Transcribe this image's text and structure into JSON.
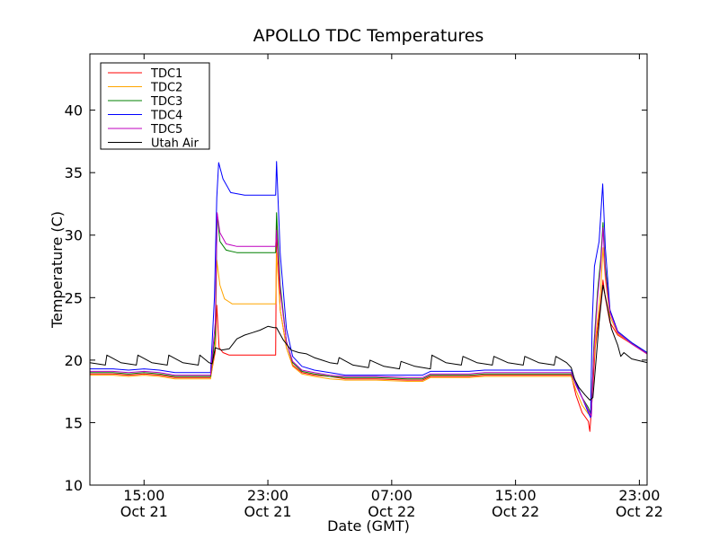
{
  "chart_data": {
    "type": "line",
    "title": "APOLLO TDC Temperatures",
    "xlabel": "Date (GMT)",
    "ylabel": "Temperature (C)",
    "ylim": [
      10,
      44.5
    ],
    "xlim_hours": [
      11.5,
      47.5
    ],
    "grid": false,
    "legend_position": "top-left",
    "yticks": [
      10,
      15,
      20,
      25,
      30,
      35,
      40
    ],
    "xticks": [
      {
        "h": 15,
        "line1": "15:00",
        "line2": "Oct 21"
      },
      {
        "h": 23,
        "line1": "23:00",
        "line2": "Oct 21"
      },
      {
        "h": 31,
        "line1": "07:00",
        "line2": "Oct 22"
      },
      {
        "h": 39,
        "line1": "15:00",
        "line2": "Oct 22"
      },
      {
        "h": 47,
        "line1": "23:00",
        "line2": "Oct 22"
      }
    ],
    "series": [
      {
        "name": "TDC1",
        "color": "#ff0000",
        "points": [
          [
            11.5,
            18.9
          ],
          [
            13,
            18.9
          ],
          [
            14,
            18.8
          ],
          [
            15,
            18.9
          ],
          [
            16,
            18.8
          ],
          [
            17,
            18.6
          ],
          [
            19.3,
            18.6
          ],
          [
            19.6,
            20.7
          ],
          [
            19.7,
            24.4
          ],
          [
            19.85,
            21.0
          ],
          [
            20.1,
            20.6
          ],
          [
            20.5,
            20.4
          ],
          [
            21.5,
            20.4
          ],
          [
            22.5,
            20.4
          ],
          [
            23.5,
            20.4
          ],
          [
            23.56,
            30.8
          ],
          [
            23.8,
            24.0
          ],
          [
            24.2,
            21.0
          ],
          [
            24.6,
            19.6
          ],
          [
            25.2,
            19.0
          ],
          [
            26,
            18.8
          ],
          [
            27,
            18.7
          ],
          [
            28,
            18.5
          ],
          [
            30,
            18.5
          ],
          [
            32,
            18.4
          ],
          [
            33,
            18.4
          ],
          [
            33.5,
            18.7
          ],
          [
            35,
            18.7
          ],
          [
            36,
            18.7
          ],
          [
            37,
            18.8
          ],
          [
            40,
            18.8
          ],
          [
            42,
            18.8
          ],
          [
            42.6,
            18.8
          ],
          [
            42.9,
            17.2
          ],
          [
            43.3,
            15.8
          ],
          [
            43.7,
            15.1
          ],
          [
            43.8,
            14.3
          ],
          [
            43.9,
            16.0
          ],
          [
            44.15,
            21.0
          ],
          [
            44.5,
            24.5
          ],
          [
            44.65,
            26.4
          ],
          [
            44.8,
            25.0
          ],
          [
            45.1,
            23.0
          ],
          [
            45.6,
            22.0
          ],
          [
            46.5,
            21.3
          ],
          [
            47.5,
            20.5
          ]
        ]
      },
      {
        "name": "TDC2",
        "color": "#ffa500",
        "points": [
          [
            11.5,
            18.8
          ],
          [
            13,
            18.8
          ],
          [
            14,
            18.7
          ],
          [
            15,
            18.8
          ],
          [
            16,
            18.7
          ],
          [
            17,
            18.5
          ],
          [
            19.3,
            18.5
          ],
          [
            19.6,
            21.0
          ],
          [
            19.7,
            28.0
          ],
          [
            19.9,
            26.0
          ],
          [
            20.2,
            24.9
          ],
          [
            20.7,
            24.5
          ],
          [
            21.5,
            24.5
          ],
          [
            22.5,
            24.5
          ],
          [
            23.5,
            24.5
          ],
          [
            23.56,
            28.6
          ],
          [
            23.8,
            24.0
          ],
          [
            24.2,
            21.0
          ],
          [
            24.6,
            19.5
          ],
          [
            25.2,
            18.9
          ],
          [
            26,
            18.7
          ],
          [
            27,
            18.5
          ],
          [
            28,
            18.4
          ],
          [
            30,
            18.4
          ],
          [
            32,
            18.3
          ],
          [
            33,
            18.3
          ],
          [
            33.5,
            18.6
          ],
          [
            35,
            18.6
          ],
          [
            36,
            18.6
          ],
          [
            37,
            18.7
          ],
          [
            40,
            18.7
          ],
          [
            42,
            18.7
          ],
          [
            42.6,
            18.7
          ],
          [
            42.9,
            17.6
          ],
          [
            43.3,
            16.4
          ],
          [
            43.7,
            15.7
          ],
          [
            43.85,
            15.6
          ],
          [
            44,
            19.0
          ],
          [
            44.2,
            22.0
          ],
          [
            44.5,
            25.5
          ],
          [
            44.65,
            29.0
          ],
          [
            44.8,
            26.5
          ],
          [
            45.1,
            23.5
          ],
          [
            45.6,
            22.1
          ],
          [
            46.5,
            21.3
          ],
          [
            47.5,
            20.5
          ]
        ]
      },
      {
        "name": "TDC3",
        "color": "#008000",
        "points": [
          [
            11.5,
            19.0
          ],
          [
            13,
            19.0
          ],
          [
            14,
            18.9
          ],
          [
            15,
            19.0
          ],
          [
            16,
            18.9
          ],
          [
            17,
            18.7
          ],
          [
            19.3,
            18.7
          ],
          [
            19.6,
            22.0
          ],
          [
            19.72,
            31.7
          ],
          [
            19.9,
            29.5
          ],
          [
            20.3,
            28.8
          ],
          [
            21,
            28.6
          ],
          [
            22,
            28.6
          ],
          [
            23,
            28.6
          ],
          [
            23.5,
            28.6
          ],
          [
            23.56,
            31.8
          ],
          [
            23.8,
            26.0
          ],
          [
            24.2,
            21.5
          ],
          [
            24.6,
            19.8
          ],
          [
            25.2,
            19.1
          ],
          [
            26,
            18.9
          ],
          [
            27,
            18.7
          ],
          [
            28,
            18.6
          ],
          [
            30,
            18.6
          ],
          [
            32,
            18.5
          ],
          [
            33,
            18.5
          ],
          [
            33.5,
            18.8
          ],
          [
            35,
            18.8
          ],
          [
            36,
            18.8
          ],
          [
            37,
            18.9
          ],
          [
            40,
            18.9
          ],
          [
            42,
            18.9
          ],
          [
            42.6,
            18.9
          ],
          [
            42.9,
            18.0
          ],
          [
            43.3,
            17.0
          ],
          [
            43.7,
            16.2
          ],
          [
            43.9,
            15.6
          ],
          [
            44.05,
            21.0
          ],
          [
            44.3,
            25.5
          ],
          [
            44.5,
            28.0
          ],
          [
            44.65,
            31.0
          ],
          [
            44.8,
            27.5
          ],
          [
            45.1,
            24.0
          ],
          [
            45.6,
            22.3
          ],
          [
            46.5,
            21.4
          ],
          [
            47.5,
            20.6
          ]
        ]
      },
      {
        "name": "TDC4",
        "color": "#0000ff",
        "points": [
          [
            11.5,
            19.3
          ],
          [
            13,
            19.3
          ],
          [
            14,
            19.2
          ],
          [
            15,
            19.3
          ],
          [
            16,
            19.2
          ],
          [
            17,
            19.0
          ],
          [
            19.3,
            19.0
          ],
          [
            19.55,
            25.0
          ],
          [
            19.7,
            33.0
          ],
          [
            19.82,
            35.8
          ],
          [
            20.1,
            34.5
          ],
          [
            20.6,
            33.4
          ],
          [
            21.5,
            33.2
          ],
          [
            22.5,
            33.2
          ],
          [
            23.5,
            33.2
          ],
          [
            23.56,
            35.9
          ],
          [
            23.8,
            28.5
          ],
          [
            24.2,
            22.5
          ],
          [
            24.6,
            20.3
          ],
          [
            25.2,
            19.5
          ],
          [
            26,
            19.2
          ],
          [
            27,
            19.0
          ],
          [
            28,
            18.8
          ],
          [
            30,
            18.8
          ],
          [
            32,
            18.8
          ],
          [
            33,
            18.8
          ],
          [
            33.5,
            19.1
          ],
          [
            35,
            19.1
          ],
          [
            36,
            19.1
          ],
          [
            37,
            19.2
          ],
          [
            40,
            19.2
          ],
          [
            42,
            19.2
          ],
          [
            42.6,
            19.2
          ],
          [
            42.9,
            18.2
          ],
          [
            43.3,
            17.0
          ],
          [
            43.7,
            15.8
          ],
          [
            43.85,
            15.4
          ],
          [
            43.95,
            23.0
          ],
          [
            44.1,
            27.5
          ],
          [
            44.4,
            29.5
          ],
          [
            44.63,
            34.1
          ],
          [
            44.8,
            29.0
          ],
          [
            45.1,
            24.0
          ],
          [
            45.6,
            22.3
          ],
          [
            46.5,
            21.4
          ],
          [
            47.5,
            20.6
          ]
        ]
      },
      {
        "name": "TDC5",
        "color": "#bf00bf",
        "points": [
          [
            11.5,
            19.1
          ],
          [
            13,
            19.1
          ],
          [
            14,
            19.0
          ],
          [
            15,
            19.1
          ],
          [
            16,
            19.0
          ],
          [
            17,
            18.8
          ],
          [
            19.3,
            18.8
          ],
          [
            19.6,
            23.0
          ],
          [
            19.72,
            31.8
          ],
          [
            19.9,
            30.2
          ],
          [
            20.3,
            29.3
          ],
          [
            21,
            29.1
          ],
          [
            22,
            29.1
          ],
          [
            23,
            29.1
          ],
          [
            23.5,
            29.1
          ],
          [
            23.56,
            30.4
          ],
          [
            23.8,
            25.5
          ],
          [
            24.2,
            21.5
          ],
          [
            24.6,
            19.9
          ],
          [
            25.2,
            19.2
          ],
          [
            26,
            19.0
          ],
          [
            27,
            18.8
          ],
          [
            28,
            18.7
          ],
          [
            30,
            18.7
          ],
          [
            32,
            18.6
          ],
          [
            33,
            18.6
          ],
          [
            33.5,
            18.9
          ],
          [
            35,
            18.9
          ],
          [
            36,
            18.9
          ],
          [
            37,
            19.0
          ],
          [
            40,
            19.0
          ],
          [
            42,
            19.0
          ],
          [
            42.6,
            19.0
          ],
          [
            42.9,
            18.0
          ],
          [
            43.3,
            17.0
          ],
          [
            43.7,
            16.0
          ],
          [
            43.9,
            15.5
          ],
          [
            44.05,
            20.5
          ],
          [
            44.3,
            25.0
          ],
          [
            44.5,
            27.5
          ],
          [
            44.65,
            30.6
          ],
          [
            44.8,
            27.0
          ],
          [
            45.1,
            23.8
          ],
          [
            45.6,
            22.2
          ],
          [
            46.5,
            21.3
          ],
          [
            47.5,
            20.5
          ]
        ]
      },
      {
        "name": "Utah Air",
        "color": "#000000",
        "points": [
          [
            11.5,
            19.8
          ],
          [
            12.5,
            19.6
          ],
          [
            12.6,
            20.4
          ],
          [
            13.5,
            19.8
          ],
          [
            14.5,
            19.6
          ],
          [
            14.6,
            20.4
          ],
          [
            15.5,
            19.8
          ],
          [
            16.5,
            19.6
          ],
          [
            16.6,
            20.4
          ],
          [
            17.5,
            19.8
          ],
          [
            18.5,
            19.6
          ],
          [
            18.6,
            20.4
          ],
          [
            19.2,
            19.8
          ],
          [
            19.4,
            19.7
          ],
          [
            19.6,
            21.0
          ],
          [
            20,
            20.8
          ],
          [
            20.5,
            20.9
          ],
          [
            21,
            21.7
          ],
          [
            21.5,
            22.0
          ],
          [
            22,
            22.2
          ],
          [
            22.5,
            22.4
          ],
          [
            23,
            22.7
          ],
          [
            23.4,
            22.6
          ],
          [
            23.56,
            22.6
          ],
          [
            24,
            21.6
          ],
          [
            24.5,
            20.8
          ],
          [
            25,
            20.6
          ],
          [
            25.5,
            20.5
          ],
          [
            26,
            20.2
          ],
          [
            26.5,
            20.0
          ],
          [
            27,
            19.8
          ],
          [
            27.5,
            19.7
          ],
          [
            27.6,
            20.2
          ],
          [
            28.5,
            19.6
          ],
          [
            29.5,
            19.4
          ],
          [
            29.6,
            20.0
          ],
          [
            30.5,
            19.5
          ],
          [
            31.5,
            19.3
          ],
          [
            31.6,
            19.9
          ],
          [
            32.5,
            19.5
          ],
          [
            33.5,
            19.3
          ],
          [
            33.6,
            20.4
          ],
          [
            34.5,
            19.8
          ],
          [
            35.5,
            19.6
          ],
          [
            35.6,
            20.3
          ],
          [
            36.5,
            19.8
          ],
          [
            37.5,
            19.6
          ],
          [
            37.6,
            20.3
          ],
          [
            38.5,
            19.8
          ],
          [
            39.5,
            19.6
          ],
          [
            39.6,
            20.3
          ],
          [
            40.5,
            19.8
          ],
          [
            41.5,
            19.6
          ],
          [
            41.6,
            20.3
          ],
          [
            42.3,
            19.8
          ],
          [
            42.6,
            19.4
          ],
          [
            42.8,
            18.5
          ],
          [
            43.1,
            17.8
          ],
          [
            43.5,
            17.2
          ],
          [
            43.8,
            16.8
          ],
          [
            44,
            17.0
          ],
          [
            44.2,
            20.0
          ],
          [
            44.4,
            23.0
          ],
          [
            44.65,
            26.0
          ],
          [
            44.9,
            24.5
          ],
          [
            45.2,
            22.5
          ],
          [
            45.6,
            21.2
          ],
          [
            45.8,
            20.3
          ],
          [
            46,
            20.6
          ],
          [
            46.5,
            20.1
          ],
          [
            47.5,
            19.8
          ]
        ]
      }
    ]
  }
}
